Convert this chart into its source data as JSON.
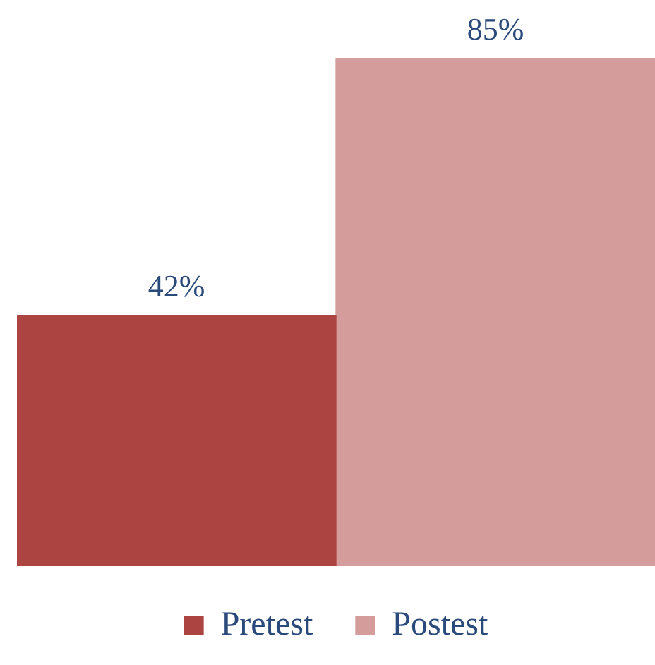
{
  "chart_data": {
    "type": "bar",
    "categories": [
      null
    ],
    "series": [
      {
        "name": "Pretest",
        "color": "#ac4442",
        "values": [
          42
        ],
        "value_labels": [
          "42%"
        ]
      },
      {
        "name": "Postest",
        "color": "#d49c9a",
        "values": [
          85
        ],
        "value_labels": [
          "85%"
        ]
      }
    ],
    "legend": "bottom"
  }
}
